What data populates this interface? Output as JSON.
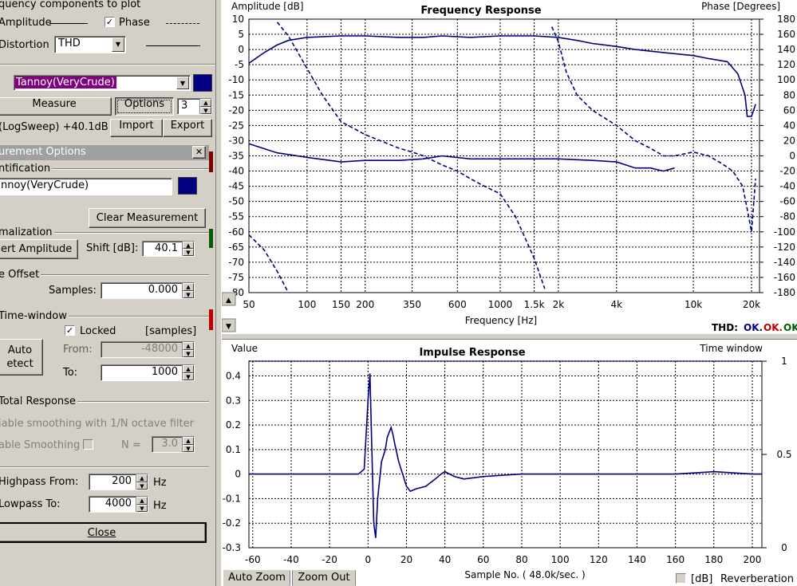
{
  "left": {
    "components_title": "quency components to plot",
    "amplitude_label": "Amplitude",
    "phase_label": "Phase",
    "distortion_label": "Distortion",
    "distortion_value": "THD",
    "measurement_name": "Tannoy(VeryCrude)",
    "measure_button": "Measure",
    "options_button": "Options",
    "count_value": "3",
    "sweep_info": "(LogSweep) +40.1dB",
    "import_button": "Import",
    "export_button": "Export",
    "options_panel_title": "urement Options",
    "close_x": "✕",
    "identification_label": "ntification",
    "identification_value": "nnoy(VeryCrude)",
    "clear_button": "Clear Measurement",
    "normalization_label": "malization",
    "invert_button": "ert Amplitude",
    "shift_label": "Shift [dB]:",
    "shift_value": "40.1",
    "offset_label": "e Offset",
    "samples_label": "Samples:",
    "samples_value": "0.000",
    "timewindow_label": "Time-window",
    "locked_label": "Locked",
    "samples_unit": "[samples]",
    "auto_detect_1": "Auto",
    "auto_detect_2": "etect",
    "from_label": "From:",
    "from_value": "-48000",
    "to_label": "To:",
    "to_value": "1000",
    "total_response_label": "Total Response",
    "smoothing_desc": "iable smoothing with 1/N octave filter",
    "smoothing_label": "able Smoothing",
    "n_label": "N =",
    "n_value": "3.0",
    "highpass_label": "Highpass From:",
    "highpass_value": "200",
    "lowpass_label": "Lowpass To:",
    "lowpass_value": "4000",
    "hz": "Hz",
    "close_button": "Close"
  },
  "colors": {
    "trace": "#000080",
    "selection": "#800080",
    "ok_blue": "#000080",
    "ok_red": "#c00000",
    "ok_green": "#006000"
  },
  "freq": {
    "title": "Frequency Response",
    "ylabel_left": "Amplitude [dB]",
    "ylabel_right": "Phase [Degrees]",
    "xlabel": "Frequency [Hz]",
    "thd_label": "THD:",
    "ok1": "OK.",
    "ok2": "OK.",
    "ok3": "OK",
    "x_ticks": [
      "50",
      "100",
      "150",
      "200",
      "350",
      "600",
      "1000",
      "1.5k",
      "2k",
      "4k",
      "10k",
      "20k"
    ],
    "x_values": [
      50,
      100,
      150,
      200,
      350,
      600,
      1000,
      1500,
      2000,
      4000,
      10000,
      20000
    ],
    "y_left_ticks": [
      "10",
      "5",
      "0",
      "-5",
      "-10",
      "-15",
      "-20",
      "-25",
      "-30",
      "-35",
      "-40",
      "-45",
      "-50",
      "-55",
      "-60",
      "-65",
      "-70",
      "-75",
      "-80"
    ],
    "y_right_ticks": [
      "180",
      "160",
      "140",
      "120",
      "100",
      "80",
      "60",
      "40",
      "20",
      "0",
      "-20",
      "-40",
      "-60",
      "-80",
      "-100",
      "-120",
      "-140",
      "-160",
      "-180"
    ]
  },
  "impulse": {
    "title": "Impulse Response",
    "ylabel_left": "Value",
    "ylabel_right": "Time window",
    "xlabel": "Sample No. ( 48.0k/sec. )",
    "x_ticks": [
      "-60",
      "-40",
      "-20",
      "0",
      "20",
      "40",
      "60",
      "80",
      "100",
      "120",
      "140",
      "160",
      "180",
      "200"
    ],
    "y_left_ticks": [
      "0.4",
      "0.3",
      "0.2",
      "0.1",
      "0",
      "-0.1",
      "-0.2",
      "-0.3"
    ],
    "y_right_ticks": [
      "1",
      "0.5",
      "0"
    ],
    "auto_zoom": "Auto Zoom",
    "zoom_out": "Zoom Out",
    "db_label": "[dB]",
    "reverb_label": "Reverberation"
  },
  "chart_data": [
    {
      "type": "line",
      "title": "Frequency Response",
      "xlabel": "Frequency [Hz]",
      "ylabel": "Amplitude [dB]",
      "y2label": "Phase [Degrees]",
      "xscale": "log",
      "xlim": [
        50,
        22000
      ],
      "ylim": [
        -80,
        10
      ],
      "y2lim": [
        -180,
        180
      ],
      "grid": true,
      "series": [
        {
          "axis": "left",
          "style": "solid",
          "x": [
            50,
            60,
            70,
            80,
            100,
            150,
            200,
            300,
            400,
            500,
            700,
            1000,
            1500,
            2000,
            2500,
            3000,
            4000,
            5000,
            7000,
            10000,
            12000,
            15000,
            17000,
            18500,
            19000,
            20000,
            21000
          ],
          "y": [
            -4.5,
            -1,
            1.5,
            3,
            4,
            4.5,
            4.5,
            4,
            4,
            4.5,
            4,
            4.5,
            4.5,
            4,
            3,
            2,
            1,
            0,
            -1,
            -2,
            -3,
            -4,
            -8,
            -15,
            -22,
            -22,
            -18
          ]
        },
        {
          "axis": "left",
          "style": "solid",
          "x": [
            50,
            70,
            100,
            150,
            200,
            300,
            400,
            500,
            700,
            1000,
            1500,
            2000,
            3000,
            4000,
            5000,
            6000,
            7000,
            8000
          ],
          "y": [
            -31,
            -34,
            -35.5,
            -37,
            -36.5,
            -36.5,
            -36,
            -35,
            -36,
            -36,
            -36,
            -36,
            -36.5,
            -37,
            -39,
            -39,
            -40,
            -39
          ]
        },
        {
          "axis": "left",
          "style": "dashed",
          "x": [
            50,
            60,
            70,
            80
          ],
          "y": [
            -61,
            -66,
            -73,
            -80
          ]
        },
        {
          "axis": "right",
          "style": "dashed",
          "x": [
            70,
            80,
            100,
            120,
            150,
            200,
            250,
            300,
            350,
            400,
            500,
            600,
            700,
            800,
            1000,
            1200,
            1500,
            1700
          ],
          "y": [
            176,
            158,
            115,
            80,
            45,
            28,
            18,
            10,
            5,
            0,
            -12,
            -20,
            -30,
            -38,
            -50,
            -80,
            -135,
            -175
          ]
        },
        {
          "axis": "right",
          "style": "dashed",
          "x": [
            1850,
            2000,
            2200,
            2500,
            3000,
            4000,
            5000,
            6000,
            7000,
            8000,
            10000,
            12000,
            14000,
            16000,
            18000,
            19000,
            20000,
            21000
          ],
          "y": [
            170,
            150,
            110,
            80,
            60,
            40,
            20,
            10,
            0,
            0,
            5,
            0,
            -10,
            -20,
            -40,
            -70,
            -100,
            -30
          ]
        }
      ]
    },
    {
      "type": "line",
      "title": "Impulse Response",
      "xlabel": "Sample No. ( 48.0k/sec. )",
      "ylabel": "Value",
      "y2label": "Time window",
      "xlim": [
        -62,
        205
      ],
      "ylim": [
        -0.3,
        0.46
      ],
      "y2lim": [
        0,
        1
      ],
      "grid": true,
      "series": [
        {
          "axis": "left",
          "style": "solid",
          "x": [
            -62,
            -10,
            -5,
            -2,
            0,
            1,
            2,
            3,
            4,
            5,
            7,
            9,
            10,
            11,
            12,
            13,
            14,
            16,
            18,
            20,
            22,
            25,
            30,
            35,
            38,
            40,
            45,
            50,
            60,
            80,
            100,
            120,
            140,
            160,
            180,
            200,
            205
          ],
          "y": [
            0,
            0,
            0,
            0.02,
            0.3,
            0.41,
            0.1,
            -0.2,
            -0.26,
            -0.1,
            0.05,
            0.1,
            0.15,
            0.17,
            0.19,
            0.16,
            0.12,
            0.05,
            0,
            -0.05,
            -0.07,
            -0.06,
            -0.05,
            -0.02,
            0,
            0.01,
            -0.01,
            -0.02,
            -0.01,
            0,
            0,
            0,
            0,
            0,
            0.01,
            0,
            0
          ]
        },
        {
          "axis": "right",
          "style": "dotted",
          "x": [
            -62,
            205
          ],
          "y": [
            1,
            1
          ]
        }
      ]
    }
  ]
}
